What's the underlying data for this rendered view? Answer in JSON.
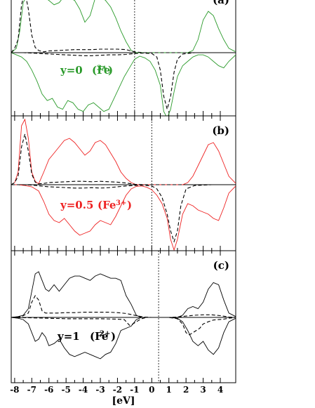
{
  "chart_data": [
    {
      "type": "line",
      "panel_label": "(a)",
      "annotation": {
        "text": "y=0",
        "ion": "(Fe",
        "charge": "3+",
        "close": ")"
      },
      "color": "#2a9a2a",
      "xlim": [
        -8.2,
        4.9
      ],
      "fermi_level": -1.0,
      "series": [
        {
          "style": "solid",
          "x": [
            -8.2,
            -7.9,
            -7.7,
            -7.5,
            -7.3,
            -7.1,
            -6.9,
            -6.7,
            -6.5,
            -6.2,
            -6.0,
            -5.7,
            -5.4,
            -5.1,
            -4.8,
            -4.5,
            -4.2,
            -3.9,
            -3.6,
            -3.3,
            -3.0,
            -2.7,
            -2.4,
            -2.1,
            -1.8,
            -1.5,
            -1.2,
            -0.9,
            -0.6,
            -0.3,
            0.0,
            0.3,
            0.6,
            0.9,
            1.2,
            1.5,
            1.8,
            2.1,
            2.4,
            2.7,
            3.0,
            3.3,
            3.6,
            3.9,
            4.2,
            4.5,
            4.9
          ],
          "y": [
            0,
            0.1,
            0.5,
            1.15,
            1.3,
            1.3,
            1.3,
            1.3,
            1.28,
            1.25,
            1.2,
            1.1,
            1.15,
            1.3,
            1.25,
            1.2,
            1.0,
            0.7,
            0.85,
            1.25,
            1.3,
            1.2,
            1.05,
            0.8,
            0.5,
            0.25,
            0.05,
            0,
            0,
            0,
            0,
            0,
            0,
            0,
            0,
            0,
            0,
            0,
            0.05,
            0.3,
            0.75,
            0.95,
            0.85,
            0.55,
            0.3,
            0.1,
            0.02
          ]
        },
        {
          "style": "solid",
          "x": [
            -8.2,
            -7.9,
            -7.6,
            -7.3,
            -7.0,
            -6.7,
            -6.4,
            -6.1,
            -5.8,
            -5.5,
            -5.2,
            -4.9,
            -4.6,
            -4.3,
            -4.0,
            -3.7,
            -3.4,
            -3.1,
            -2.8,
            -2.5,
            -2.2,
            -1.9,
            -1.6,
            -1.3,
            -1.0,
            -0.7,
            -0.4,
            -0.1,
            0.2,
            0.5,
            0.7,
            0.9,
            1.1,
            1.3,
            1.5,
            1.8,
            2.1,
            2.4,
            2.7,
            3.0,
            3.3,
            3.6,
            3.9,
            4.2,
            4.5,
            4.9
          ],
          "y": [
            0,
            -0.05,
            -0.1,
            -0.2,
            -0.4,
            -0.65,
            -0.95,
            -1.1,
            -1.05,
            -1.25,
            -1.3,
            -1.1,
            -1.15,
            -1.3,
            -1.35,
            -1.2,
            -1.15,
            -1.25,
            -1.35,
            -1.3,
            -1.05,
            -0.8,
            -0.55,
            -0.35,
            -0.15,
            -0.08,
            -0.12,
            -0.2,
            -0.4,
            -0.75,
            -1.35,
            -1.5,
            -1.3,
            -0.9,
            -0.55,
            -0.3,
            -0.2,
            -0.1,
            -0.05,
            -0.05,
            -0.1,
            -0.2,
            -0.3,
            -0.35,
            -0.2,
            -0.05
          ]
        },
        {
          "style": "dashed",
          "x": [
            -8.2,
            -8.0,
            -7.8,
            -7.6,
            -7.4,
            -7.2,
            -7.0,
            -6.8,
            -6.6,
            -6.3,
            -6.0,
            -5.5,
            -5.0,
            -4.5,
            -4.0,
            -3.5,
            -3.0,
            -2.5,
            -2.0,
            -1.5,
            -1.0,
            -0.5,
            0.0,
            0.5,
            1.0,
            2.0,
            3.0,
            4.0,
            4.9
          ],
          "y": [
            0,
            0.1,
            0.3,
            1.1,
            1.4,
            1.0,
            0.4,
            0.12,
            0.05,
            0.02,
            0.04,
            0.05,
            0.06,
            0.07,
            0.07,
            0.07,
            0.08,
            0.08,
            0.08,
            0.07,
            0.02,
            0,
            0,
            0,
            0,
            0,
            0,
            0,
            0
          ]
        },
        {
          "style": "dashed",
          "x": [
            -8.2,
            -7.5,
            -7.0,
            -6.5,
            -6.0,
            -5.5,
            -5.0,
            -4.5,
            -4.0,
            -3.5,
            -3.0,
            -2.5,
            -2.0,
            -1.5,
            -1.0,
            -0.5,
            0.0,
            0.3,
            0.5,
            0.7,
            0.9,
            1.1,
            1.3,
            1.5,
            1.8,
            2.5,
            3.5,
            4.9
          ],
          "y": [
            0,
            0,
            -0.01,
            -0.02,
            -0.03,
            -0.04,
            -0.05,
            -0.06,
            -0.07,
            -0.07,
            -0.06,
            -0.05,
            -0.05,
            -0.04,
            -0.02,
            -0.01,
            -0.02,
            -0.1,
            -0.4,
            -1.0,
            -1.3,
            -1.0,
            -0.45,
            -0.15,
            -0.03,
            0,
            0,
            0
          ]
        }
      ]
    },
    {
      "type": "line",
      "panel_label": "(b)",
      "annotation": {
        "text": "y=0.5",
        "ion": "(Fe",
        "charge": "3+",
        "close": ")"
      },
      "color": "#ee2222",
      "xlim": [
        -8.2,
        4.9
      ],
      "fermi_level": 0.0,
      "series": [
        {
          "style": "solid",
          "x": [
            -8.2,
            -8.0,
            -7.8,
            -7.6,
            -7.4,
            -7.2,
            -7.0,
            -6.8,
            -6.6,
            -6.3,
            -6.0,
            -5.7,
            -5.4,
            -5.1,
            -4.8,
            -4.5,
            -4.2,
            -3.9,
            -3.6,
            -3.3,
            -3.0,
            -2.7,
            -2.4,
            -2.1,
            -1.8,
            -1.5,
            -1.2,
            -0.9,
            -0.6,
            -0.3,
            0.0,
            0.5,
            1.0,
            1.5,
            1.8,
            2.1,
            2.4,
            2.7,
            3.0,
            3.3,
            3.6,
            3.9,
            4.2,
            4.5,
            4.9
          ],
          "y": [
            0,
            0.05,
            0.3,
            1.4,
            1.55,
            1.1,
            0.3,
            0.08,
            0.02,
            0.3,
            0.6,
            0.75,
            0.9,
            1.05,
            1.1,
            1.0,
            0.85,
            0.7,
            0.8,
            1.0,
            1.05,
            0.95,
            0.75,
            0.55,
            0.3,
            0.15,
            0.05,
            0,
            0,
            0,
            0,
            0,
            0,
            0,
            0,
            0.05,
            0.2,
            0.45,
            0.7,
            0.95,
            1.0,
            0.8,
            0.5,
            0.2,
            0.03
          ]
        },
        {
          "style": "solid",
          "x": [
            -8.2,
            -7.8,
            -7.4,
            -7.0,
            -6.6,
            -6.3,
            -6.0,
            -5.7,
            -5.4,
            -5.1,
            -4.8,
            -4.5,
            -4.2,
            -3.9,
            -3.6,
            -3.3,
            -3.0,
            -2.7,
            -2.4,
            -2.1,
            -1.8,
            -1.5,
            -1.2,
            -0.9,
            -0.6,
            -0.3,
            0.0,
            0.3,
            0.6,
            0.9,
            1.1,
            1.3,
            1.5,
            1.8,
            2.1,
            2.4,
            2.7,
            3.0,
            3.3,
            3.6,
            3.9,
            4.2,
            4.5,
            4.9
          ],
          "y": [
            0,
            0,
            -0.02,
            -0.05,
            -0.15,
            -0.4,
            -0.7,
            -0.85,
            -0.9,
            -0.8,
            -0.95,
            -1.1,
            -1.2,
            -1.15,
            -1.1,
            -0.95,
            -0.85,
            -0.9,
            -0.95,
            -0.75,
            -0.5,
            -0.25,
            -0.1,
            -0.04,
            -0.03,
            -0.06,
            -0.12,
            -0.25,
            -0.45,
            -0.8,
            -1.3,
            -1.55,
            -1.3,
            -0.7,
            -0.45,
            -0.5,
            -0.6,
            -0.65,
            -0.7,
            -0.8,
            -0.85,
            -0.55,
            -0.2,
            -0.03
          ]
        },
        {
          "style": "dashed",
          "x": [
            -8.2,
            -8.0,
            -7.8,
            -7.6,
            -7.4,
            -7.2,
            -7.0,
            -6.8,
            -6.6,
            -6.3,
            -6.0,
            -5.5,
            -5.0,
            -4.5,
            -4.0,
            -3.5,
            -3.0,
            -2.5,
            -2.0,
            -1.5,
            -1.0,
            -0.5,
            0.0,
            1.0,
            2.0,
            3.0,
            4.0,
            4.9
          ],
          "y": [
            0,
            0.05,
            0.2,
            0.9,
            1.2,
            0.8,
            0.25,
            0.06,
            0.02,
            0.03,
            0.05,
            0.06,
            0.07,
            0.08,
            0.08,
            0.07,
            0.08,
            0.07,
            0.06,
            0.04,
            0.01,
            0,
            0,
            0,
            0,
            0,
            0,
            0
          ]
        },
        {
          "style": "dashed",
          "x": [
            -8.2,
            -7.5,
            -7.0,
            -6.5,
            -6.0,
            -5.5,
            -5.0,
            -4.5,
            -4.0,
            -3.5,
            -3.0,
            -2.5,
            -2.0,
            -1.5,
            -1.0,
            -0.5,
            0.0,
            0.3,
            0.6,
            0.9,
            1.1,
            1.3,
            1.5,
            1.7,
            2.0,
            2.5,
            3.5,
            4.9
          ],
          "y": [
            0,
            0,
            -0.01,
            -0.03,
            -0.05,
            -0.06,
            -0.07,
            -0.08,
            -0.08,
            -0.07,
            -0.08,
            -0.07,
            -0.05,
            -0.03,
            -0.02,
            -0.01,
            -0.03,
            -0.1,
            -0.3,
            -0.7,
            -1.1,
            -1.35,
            -1.1,
            -0.5,
            -0.1,
            -0.02,
            0,
            0
          ]
        }
      ]
    },
    {
      "type": "line",
      "panel_label": "(c)",
      "annotation": {
        "text": "y=1",
        "ion": "(Fe",
        "charge": "2+",
        "close": ")"
      },
      "color": "#000000",
      "xlim": [
        -8.2,
        4.9
      ],
      "fermi_level": 0.4,
      "xlabel": "[eV]",
      "xticks": [
        -8,
        -7,
        -6,
        -5,
        -4,
        -3,
        -2,
        -1,
        0,
        1,
        2,
        3,
        4
      ],
      "series": [
        {
          "style": "solid",
          "x": [
            -8.2,
            -7.8,
            -7.5,
            -7.2,
            -7.0,
            -6.8,
            -6.6,
            -6.4,
            -6.2,
            -6.0,
            -5.7,
            -5.4,
            -5.1,
            -4.8,
            -4.5,
            -4.2,
            -3.9,
            -3.6,
            -3.3,
            -3.0,
            -2.7,
            -2.4,
            -2.1,
            -1.8,
            -1.5,
            -1.2,
            -0.9,
            -0.6,
            -0.3,
            0.0,
            0.5,
            1.0,
            1.5,
            1.8,
            2.1,
            2.4,
            2.7,
            3.0,
            3.3,
            3.6,
            3.9,
            4.2,
            4.5,
            4.9
          ],
          "y": [
            0,
            0.02,
            0.05,
            0.2,
            0.6,
            1.0,
            1.05,
            0.85,
            0.65,
            0.6,
            0.75,
            0.6,
            0.75,
            0.9,
            0.95,
            0.95,
            0.9,
            0.85,
            0.95,
            1.0,
            0.95,
            0.9,
            0.9,
            0.85,
            0.5,
            0.3,
            0.05,
            0,
            0,
            0,
            0,
            0,
            0,
            0.05,
            0.2,
            0.25,
            0.2,
            0.35,
            0.65,
            0.8,
            0.75,
            0.4,
            0.1,
            0.02
          ]
        },
        {
          "style": "solid",
          "x": [
            -8.2,
            -7.8,
            -7.5,
            -7.2,
            -7.0,
            -6.8,
            -6.6,
            -6.4,
            -6.2,
            -6.0,
            -5.7,
            -5.4,
            -5.1,
            -4.8,
            -4.5,
            -4.2,
            -3.9,
            -3.6,
            -3.3,
            -3.0,
            -2.7,
            -2.4,
            -2.1,
            -1.8,
            -1.5,
            -1.2,
            -0.9,
            -0.6,
            -0.3,
            0.0,
            0.5,
            1.0,
            1.5,
            1.8,
            2.1,
            2.4,
            2.7,
            3.0,
            3.3,
            3.6,
            3.9,
            4.2,
            4.5,
            4.9
          ],
          "y": [
            0,
            -0.02,
            -0.05,
            -0.15,
            -0.35,
            -0.55,
            -0.5,
            -0.35,
            -0.45,
            -0.65,
            -0.6,
            -0.5,
            -0.7,
            -0.85,
            -0.9,
            -0.85,
            -0.8,
            -0.85,
            -0.9,
            -0.95,
            -0.85,
            -0.8,
            -0.6,
            -0.3,
            -0.25,
            -0.2,
            -0.05,
            0,
            0,
            0,
            0,
            0,
            -0.02,
            -0.1,
            -0.3,
            -0.55,
            -0.65,
            -0.55,
            -0.75,
            -0.85,
            -0.7,
            -0.35,
            -0.1,
            -0.02
          ]
        },
        {
          "style": "dashed",
          "x": [
            -8.2,
            -7.6,
            -7.2,
            -7.0,
            -6.8,
            -6.6,
            -6.4,
            -6.2,
            -6.0,
            -5.5,
            -5.0,
            -4.5,
            -4.0,
            -3.5,
            -3.0,
            -2.5,
            -2.0,
            -1.5,
            -1.0,
            -0.5,
            0.0,
            0.5,
            1.0,
            1.5,
            2.0,
            2.5,
            3.0,
            3.5,
            4.0,
            4.5,
            4.9
          ],
          "y": [
            0,
            0.02,
            0.1,
            0.35,
            0.5,
            0.4,
            0.15,
            0.1,
            0.1,
            0.1,
            0.11,
            0.11,
            0.12,
            0.12,
            0.12,
            0.12,
            0.11,
            0.09,
            0.05,
            0.01,
            0,
            0,
            0,
            0.01,
            0.03,
            0.05,
            0.06,
            0.06,
            0.04,
            0.01,
            0
          ]
        },
        {
          "style": "dashed",
          "x": [
            -8.2,
            -7.0,
            -6.0,
            -5.0,
            -4.0,
            -3.0,
            -2.0,
            -1.6,
            -1.3,
            -1.1,
            -0.9,
            -0.6,
            -0.3,
            0.0,
            0.5,
            1.0,
            1.5,
            1.8,
            2.0,
            2.2,
            2.4,
            2.6,
            2.8,
            3.0,
            3.3,
            3.6,
            3.9,
            4.2,
            4.5,
            4.9
          ],
          "y": [
            0,
            -0.01,
            -0.02,
            -0.03,
            -0.03,
            -0.03,
            -0.04,
            -0.05,
            -0.18,
            -0.15,
            -0.1,
            -0.03,
            0,
            0,
            0,
            0,
            -0.03,
            -0.15,
            -0.35,
            -0.4,
            -0.35,
            -0.3,
            -0.25,
            -0.15,
            -0.1,
            -0.06,
            -0.05,
            -0.04,
            -0.02,
            0
          ]
        }
      ]
    }
  ]
}
